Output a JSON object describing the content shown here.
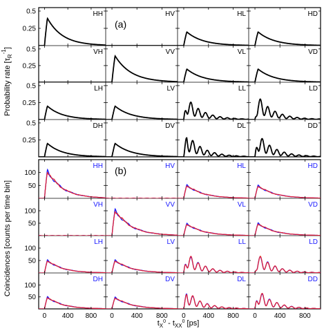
{
  "figure": {
    "ylabel_top": "Probability rate [τ_R^-1]",
    "ylabel_top_main": "Probability rate [τ",
    "ylabel_top_sub": "R",
    "ylabel_top_sup": "-1",
    "ylabel_top_end": "]",
    "ylabel_bottom": "Coincidences [counts per time bin]",
    "xlabel_main_a": "t",
    "xlabel_sub_a": "X",
    "xlabel_sup_a": "0",
    "xlabel_mid": " - t",
    "xlabel_sub_b": "XX",
    "xlabel_sup_b": "0",
    "xlabel_end": " [ps]",
    "xlabel": "t_X0 - t_XX0 [ps]"
  },
  "chart_data": [
    {
      "type": "line",
      "panel": "(a)",
      "ylabel": "Probability rate [τ_R^-1]",
      "xlim": [
        -100,
        1050
      ],
      "ylim": [
        0,
        0.55
      ],
      "yticks": [
        "0.5",
        "0.25"
      ],
      "ytick_values": [
        0.5,
        0.25
      ],
      "grid": false,
      "series_color": "#000000",
      "rows": [
        "H",
        "V",
        "L",
        "D"
      ],
      "cols": [
        "H",
        "V",
        "L",
        "D"
      ],
      "subplots": [
        {
          "label": "HH",
          "type": "decay",
          "peak": 0.48
        },
        {
          "label": "HV",
          "type": "zero",
          "peak": 0
        },
        {
          "label": "HL",
          "type": "decay",
          "peak": 0.24
        },
        {
          "label": "HD",
          "type": "decay",
          "peak": 0.24
        },
        {
          "label": "VH",
          "type": "zero",
          "peak": 0
        },
        {
          "label": "VV",
          "type": "decay",
          "peak": 0.48
        },
        {
          "label": "VL",
          "type": "decay",
          "peak": 0.24
        },
        {
          "label": "VD",
          "type": "decay",
          "peak": 0.24
        },
        {
          "label": "LH",
          "type": "decay",
          "peak": 0.24
        },
        {
          "label": "LV",
          "type": "decay",
          "peak": 0.24
        },
        {
          "label": "LL",
          "type": "osc",
          "peak": 0.38,
          "phase": 0
        },
        {
          "label": "LD",
          "type": "osc",
          "peak": 0.4,
          "phase": 1.57
        },
        {
          "label": "DH",
          "type": "decay",
          "peak": 0.24
        },
        {
          "label": "DV",
          "type": "decay",
          "peak": 0.24
        },
        {
          "label": "DL",
          "type": "osc",
          "peak": 0.4,
          "phase": -1.57
        },
        {
          "label": "DD",
          "type": "osc",
          "peak": 0.4,
          "phase": 0
        }
      ]
    },
    {
      "type": "line",
      "panel": "(b)",
      "ylabel": "Coincidences [counts per time bin]",
      "xlabel": "t_X0 - t_XX0 [ps]",
      "xlim": [
        -100,
        1050
      ],
      "ylim": [
        0,
        150
      ],
      "xticks": [
        0,
        400,
        800
      ],
      "xtick_labels": [
        "0",
        "400",
        "800"
      ],
      "yticks": [
        "100",
        "50"
      ],
      "ytick_values": [
        100,
        50
      ],
      "grid": false,
      "series_colors": {
        "measured": "#1a1aff",
        "model": "#e0203a",
        "fit": "#f0a020"
      },
      "subplots": [
        {
          "label": "HH",
          "type": "decay",
          "peak": 130
        },
        {
          "label": "HV",
          "type": "zero",
          "peak": 2
        },
        {
          "label": "HL",
          "type": "decay",
          "peak": 62
        },
        {
          "label": "HD",
          "type": "decay",
          "peak": 60
        },
        {
          "label": "VH",
          "type": "zero",
          "peak": 2
        },
        {
          "label": "VV",
          "type": "decay",
          "peak": 125
        },
        {
          "label": "VL",
          "type": "decay",
          "peak": 58
        },
        {
          "label": "VD",
          "type": "decay",
          "peak": 60
        },
        {
          "label": "LH",
          "type": "decay",
          "peak": 62
        },
        {
          "label": "LV",
          "type": "decay",
          "peak": 62
        },
        {
          "label": "LL",
          "type": "osc",
          "peak": 98,
          "phase": 0
        },
        {
          "label": "LD",
          "type": "osc",
          "peak": 90,
          "phase": 1.57
        },
        {
          "label": "DH",
          "type": "decay",
          "peak": 60
        },
        {
          "label": "DV",
          "type": "decay",
          "peak": 58
        },
        {
          "label": "DL",
          "type": "osc",
          "peak": 88,
          "phase": -1.57
        },
        {
          "label": "DD",
          "type": "osc",
          "peak": 95,
          "phase": 0
        }
      ]
    }
  ]
}
